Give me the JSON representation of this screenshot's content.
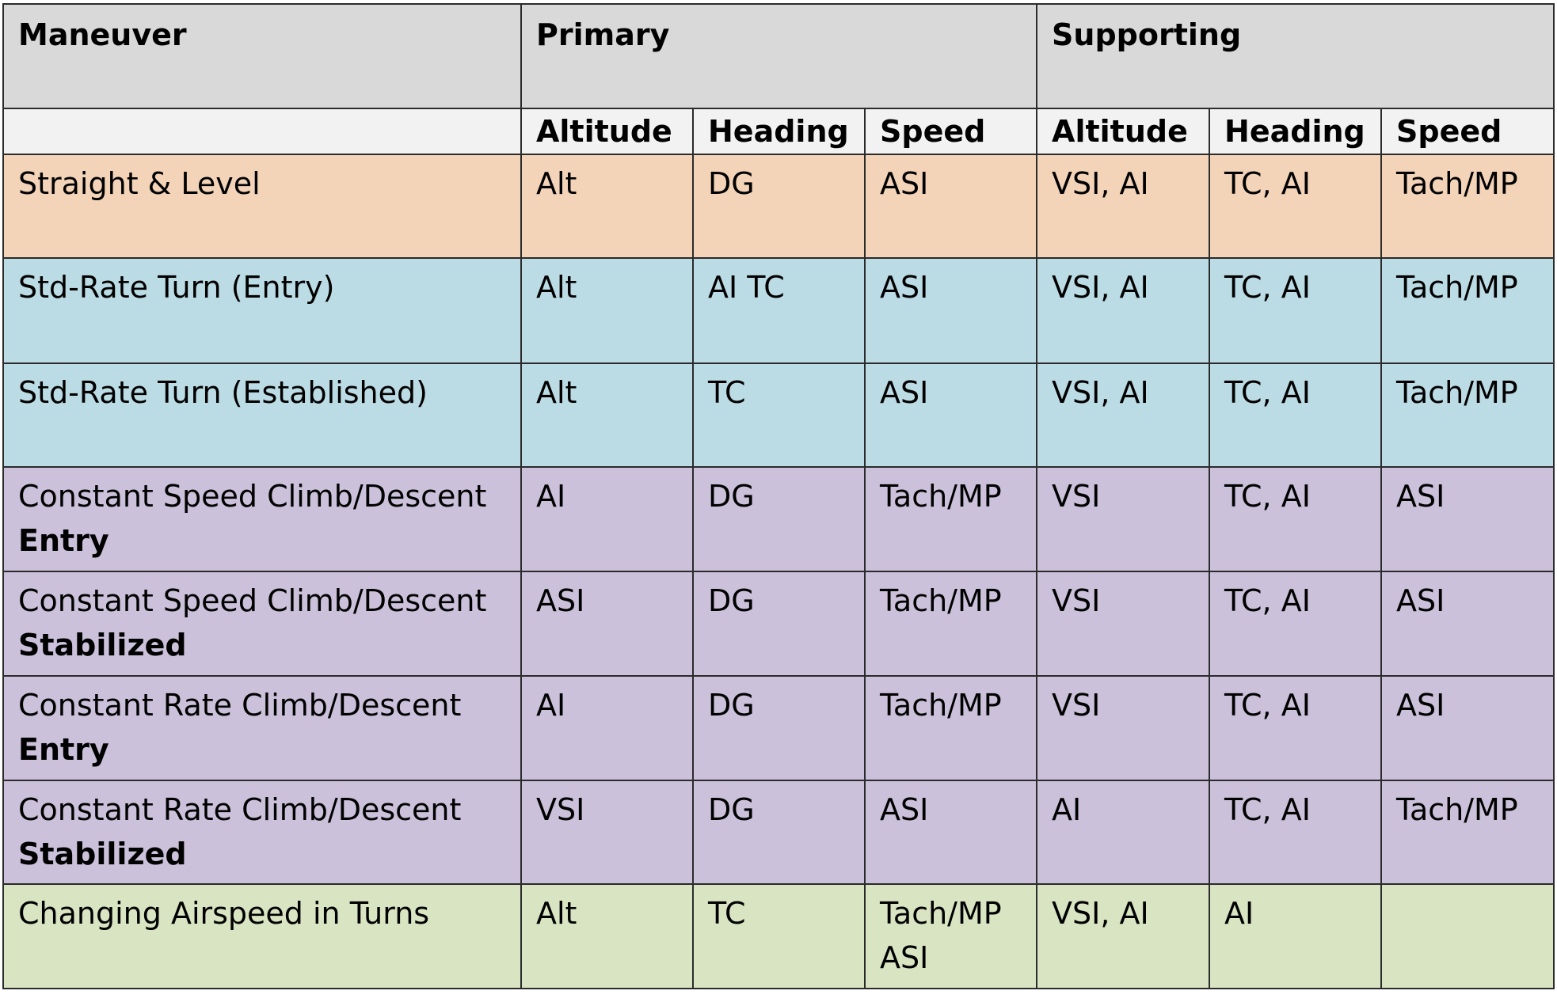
{
  "table": {
    "header": {
      "maneuver": "Maneuver",
      "primary": "Primary",
      "supporting": "Supporting",
      "sub_columns": [
        "Altitude",
        "Heading",
        "Speed",
        "Altitude",
        "Heading",
        "Speed"
      ]
    },
    "colors": {
      "header_bg": "#d9d9d9",
      "subheader_bg": "#f2f2f2",
      "straight": "#f4d4b8",
      "turn": "#bcdce5",
      "climb": "#cbc1da",
      "airspeed": "#d9e4c2",
      "border": "#2b2b2b"
    },
    "rows": [
      {
        "maneuver": "Straight & Level",
        "maneuver_sub": "",
        "group": "straight",
        "cells": [
          "Alt",
          "DG",
          "ASI",
          "VSI, AI",
          "TC, AI",
          "Tach/MP"
        ]
      },
      {
        "maneuver": "Std-Rate Turn (Entry)",
        "maneuver_sub": "",
        "group": "turn",
        "cells": [
          "Alt",
          "AI TC",
          "ASI",
          "VSI, AI",
          "TC, AI",
          "Tach/MP"
        ]
      },
      {
        "maneuver": "Std-Rate Turn (Established)",
        "maneuver_sub": "",
        "group": "turn",
        "cells": [
          "Alt",
          "TC",
          "ASI",
          "VSI, AI",
          "TC, AI",
          "Tach/MP"
        ]
      },
      {
        "maneuver": "Constant Speed Climb/Descent",
        "maneuver_sub": "Entry",
        "group": "climb",
        "cells": [
          "AI",
          "DG",
          "Tach/MP",
          "VSI",
          "TC, AI",
          "ASI"
        ]
      },
      {
        "maneuver": "Constant Speed Climb/Descent",
        "maneuver_sub": "Stabilized",
        "group": "climb",
        "cells": [
          "ASI",
          "DG",
          "Tach/MP",
          "VSI",
          "TC, AI",
          "ASI"
        ]
      },
      {
        "maneuver": "Constant Rate Climb/Descent",
        "maneuver_sub": "Entry",
        "group": "climb",
        "cells": [
          "AI",
          "DG",
          "Tach/MP",
          "VSI",
          "TC, AI",
          "ASI"
        ]
      },
      {
        "maneuver": "Constant Rate Climb/Descent",
        "maneuver_sub": "Stabilized",
        "group": "climb",
        "cells": [
          "VSI",
          "DG",
          "ASI",
          "AI",
          "TC, AI",
          "Tach/MP"
        ]
      },
      {
        "maneuver": "Changing Airspeed in Turns",
        "maneuver_sub": "",
        "group": "airspeed",
        "cells": [
          "Alt",
          "TC",
          "Tach/MP",
          "VSI, AI",
          "AI",
          ""
        ],
        "cells_line2": [
          "",
          "",
          "ASI",
          "",
          "",
          ""
        ]
      }
    ]
  }
}
